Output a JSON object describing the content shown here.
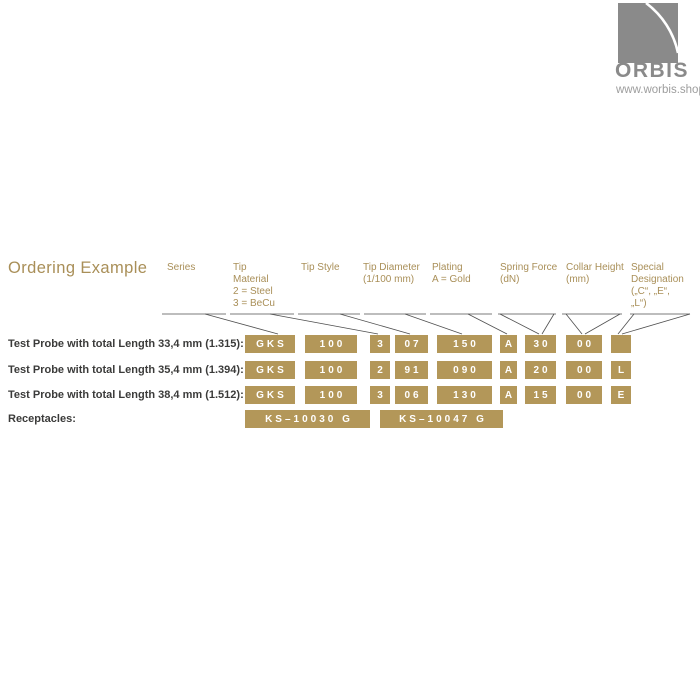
{
  "logo": {
    "brand": "ORBIS",
    "url": "www.worbis.shop"
  },
  "title": "Ordering Example",
  "columns": [
    {
      "id": "series",
      "label_lines": [
        "Series"
      ]
    },
    {
      "id": "tip-material",
      "label_lines": [
        "Tip",
        "Material",
        "2 = Steel",
        "3 = BeCu"
      ]
    },
    {
      "id": "tip-style",
      "label_lines": [
        "Tip Style"
      ]
    },
    {
      "id": "tip-diameter",
      "label_lines": [
        "Tip Diameter",
        "(1/100 mm)"
      ]
    },
    {
      "id": "plating",
      "label_lines": [
        "Plating",
        "A = Gold"
      ]
    },
    {
      "id": "spring-force",
      "label_lines": [
        "Spring Force",
        "(dN)"
      ]
    },
    {
      "id": "collar-height",
      "label_lines": [
        "Collar Height",
        "(mm)"
      ]
    },
    {
      "id": "special-designation",
      "label_lines": [
        "Special",
        "Designation",
        "(„C“, „E“,",
        "„L“)"
      ]
    }
  ],
  "rows": [
    {
      "label": "Test Probe with total Length 33,4 mm (1.315):",
      "codes": [
        "GKS",
        "100",
        "3",
        "07",
        "150",
        "A",
        "30",
        "00",
        ""
      ]
    },
    {
      "label": "Test Probe with total Length 35,4 mm (1.394):",
      "codes": [
        "GKS",
        "100",
        "2",
        "91",
        "090",
        "A",
        "20",
        "00",
        "L"
      ]
    },
    {
      "label": "Test Probe with total Length 38,4 mm (1.512):",
      "codes": [
        "GKS",
        "100",
        "3",
        "06",
        "130",
        "A",
        "15",
        "00",
        "E"
      ]
    }
  ],
  "receptacles": {
    "label": "Receptacles:",
    "codes": [
      "KS–10030 G",
      "KS–10047 G"
    ]
  },
  "colors": {
    "accent_text": "#a98f58",
    "box_fill": "#b39759",
    "dark_text": "#3b3b3a",
    "logo_gray": "#8a8a8a",
    "logo_gray_light": "#9d9d9d",
    "line": "#4f4f4f"
  }
}
